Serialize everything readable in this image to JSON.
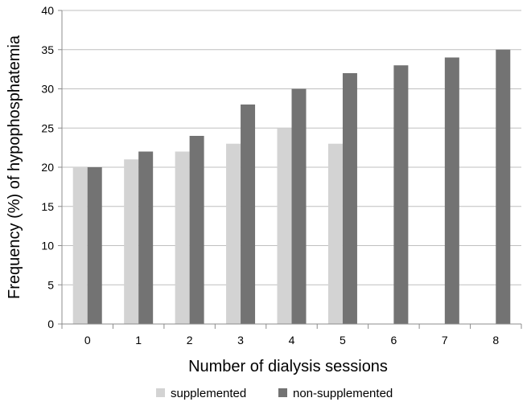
{
  "chart_data": {
    "type": "bar",
    "title": "",
    "xlabel": "Number of dialysis sessions",
    "ylabel": "Frequency (%) of hypophosphatemia",
    "categories": [
      "0",
      "1",
      "2",
      "3",
      "4",
      "5",
      "6",
      "7",
      "8"
    ],
    "series": [
      {
        "name": "supplemented",
        "color": "#d3d3d3",
        "values": [
          20,
          21,
          22,
          23,
          25,
          23,
          null,
          null,
          null
        ]
      },
      {
        "name": "non-supplemented",
        "color": "#737373",
        "values": [
          20,
          22,
          24,
          28,
          30,
          32,
          33,
          34,
          35
        ]
      }
    ],
    "ylim": [
      0,
      40
    ],
    "yticks": [
      0,
      5,
      10,
      15,
      20,
      25,
      30,
      35,
      40
    ],
    "grid": true,
    "legend_position": "bottom"
  }
}
